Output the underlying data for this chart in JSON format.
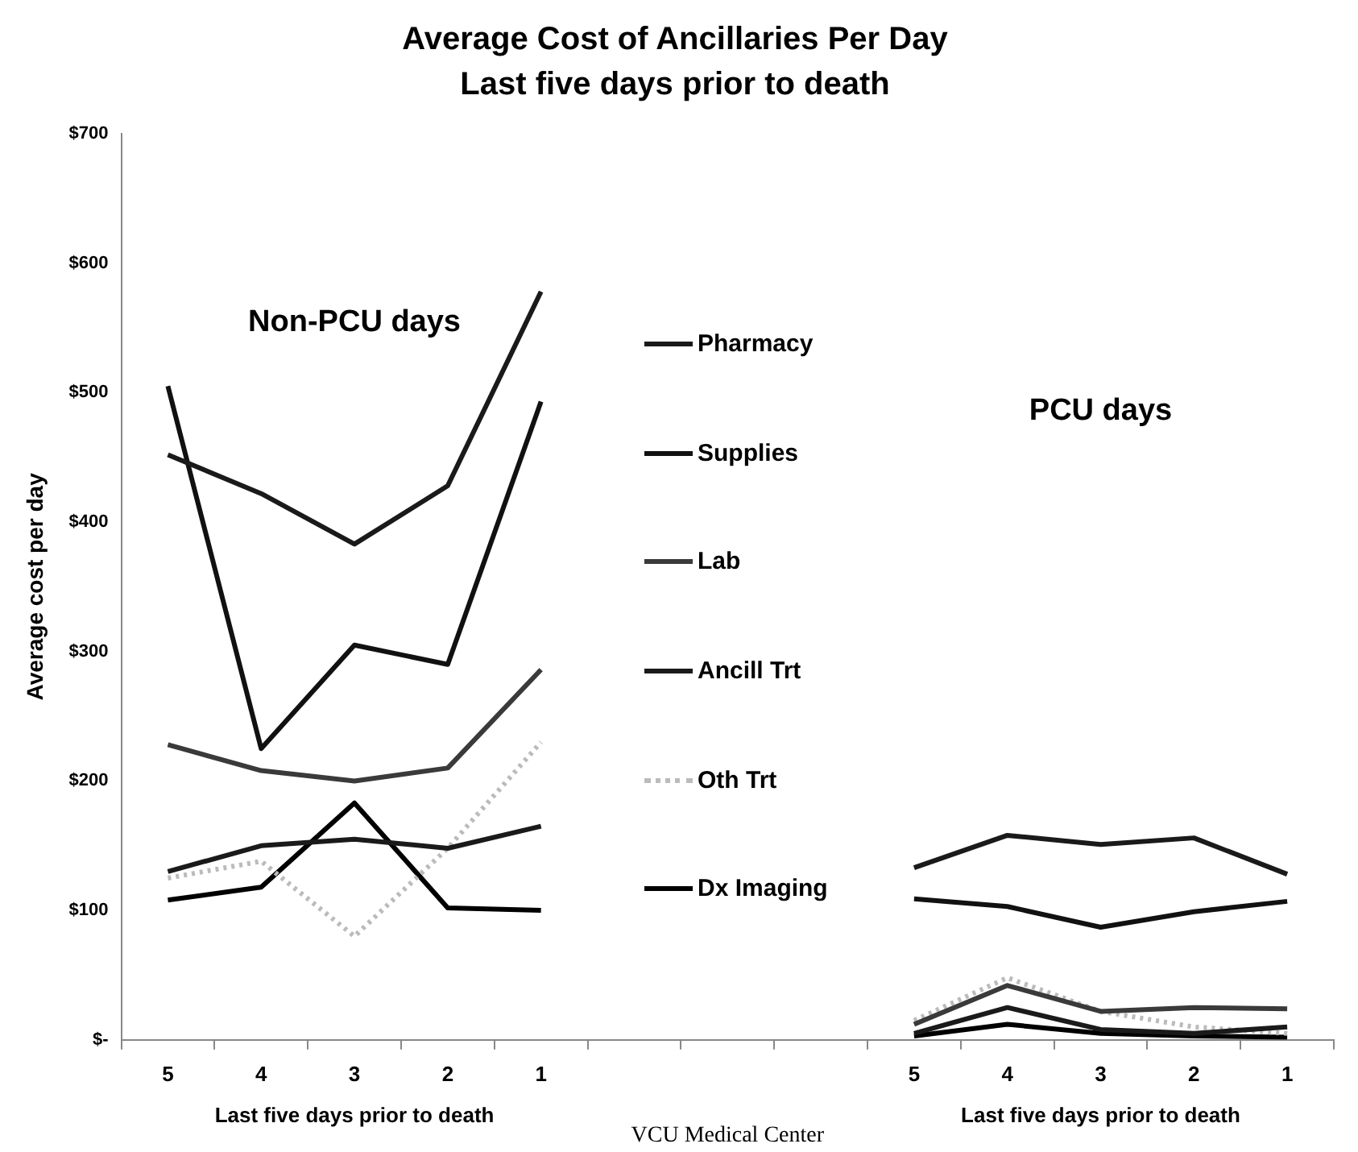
{
  "chart_data": {
    "type": "line",
    "title": "Average Cost of Ancillaries Per Day",
    "subtitle": "Last five days prior to death",
    "xlabel": "Last five days prior to death",
    "ylabel": "Average cost per day",
    "annotations": [
      "Non-PCU days",
      "PCU days",
      "VCU Medical Center"
    ],
    "categories": [
      "5",
      "4",
      "3",
      "2",
      "1",
      null,
      null,
      null,
      "5",
      "4",
      "3",
      "2",
      "1"
    ],
    "ylim": [
      0,
      700
    ],
    "yticks": [
      {
        "value": 0,
        "label": "$-"
      },
      {
        "value": 100,
        "label": "$100"
      },
      {
        "value": 200,
        "label": "$200"
      },
      {
        "value": 300,
        "label": "$300"
      },
      {
        "value": 400,
        "label": "$400"
      },
      {
        "value": 500,
        "label": "$500"
      },
      {
        "value": 600,
        "label": "$600"
      },
      {
        "value": 700,
        "label": "$700"
      }
    ],
    "grid": false,
    "legend": "center",
    "marker": "none",
    "series": [
      {
        "name": "Pharmacy",
        "color": "#1a1a1a",
        "values": [
          452,
          422,
          383,
          428,
          578,
          null,
          null,
          null,
          133,
          158,
          151,
          156,
          128
        ]
      },
      {
        "name": "Supplies",
        "color": "#111111",
        "values": [
          505,
          225,
          305,
          290,
          493,
          null,
          null,
          null,
          109,
          103,
          87,
          99,
          107
        ]
      },
      {
        "name": "Lab",
        "color": "#3a3a3a",
        "values": [
          228,
          208,
          200,
          210,
          286,
          null,
          null,
          null,
          12,
          42,
          22,
          25,
          24
        ]
      },
      {
        "name": "Ancill Trt",
        "color": "#1a1a1a",
        "values": [
          130,
          150,
          155,
          148,
          165,
          null,
          null,
          null,
          5,
          25,
          8,
          5,
          10
        ]
      },
      {
        "name": "Oth Trt",
        "color": "#bbbbbb",
        "line_style": "dotted",
        "values": [
          125,
          138,
          80,
          148,
          230,
          null,
          null,
          null,
          15,
          48,
          22,
          10,
          5
        ]
      },
      {
        "name": "Dx Imaging",
        "color": "#000000",
        "values": [
          108,
          118,
          183,
          102,
          100,
          null,
          null,
          null,
          3,
          12,
          5,
          3,
          2
        ]
      }
    ]
  }
}
